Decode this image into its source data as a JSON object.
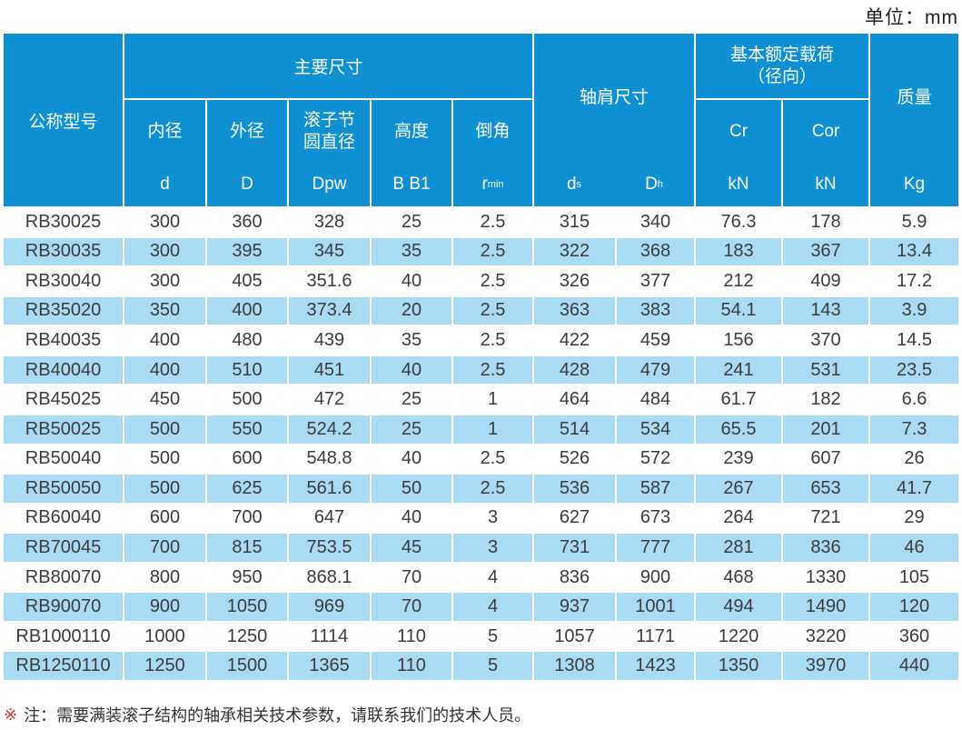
{
  "unit_label": "单位：mm",
  "colors": {
    "header_blue": "#0e90d2",
    "row_alt_blue": "#a9dbf4",
    "row_white": "#ffffff",
    "note_marker_red": "#d9342b",
    "header_text": "#ffffff",
    "body_text": "#3c3c3c"
  },
  "table": {
    "header": {
      "model": "公称型号",
      "main_dims": "主要尺寸",
      "inner_diameter": "内径",
      "outer_diameter": "外径",
      "roller_pitch_diameter": "滚子节\n圆直径",
      "height": "高度",
      "chamfer": "倒角",
      "shoulder_dims": "轴肩尺寸",
      "basic_load": "基本额定载荷\n（径向）",
      "mass": "质量",
      "sym_d": "d",
      "sym_D": "D",
      "sym_Dpw": "Dpw",
      "sym_B": "B B1",
      "sym_r_main": "r",
      "sym_r_sub": "min",
      "sym_ds_main": "d",
      "sym_ds_sub": "s",
      "sym_Dh_main": "D",
      "sym_Dh_sub": "h",
      "cr": "Cr",
      "cor": "Cor",
      "cr_unit": "kN",
      "cor_unit": "kN",
      "mass_unit": "Kg"
    },
    "columns": [
      "model",
      "d",
      "D",
      "Dpw",
      "B B1",
      "r min",
      "ds",
      "Dh",
      "Cr kN",
      "Cor kN",
      "mass Kg"
    ],
    "rows": [
      [
        "RB30025",
        "300",
        "360",
        "328",
        "25",
        "2.5",
        "315",
        "340",
        "76.3",
        "178",
        "5.9"
      ],
      [
        "RB30035",
        "300",
        "395",
        "345",
        "35",
        "2.5",
        "322",
        "368",
        "183",
        "367",
        "13.4"
      ],
      [
        "RB30040",
        "300",
        "405",
        "351.6",
        "40",
        "2.5",
        "326",
        "377",
        "212",
        "409",
        "17.2"
      ],
      [
        "RB35020",
        "350",
        "400",
        "373.4",
        "20",
        "2.5",
        "363",
        "383",
        "54.1",
        "143",
        "3.9"
      ],
      [
        "RB40035",
        "400",
        "480",
        "439",
        "35",
        "2.5",
        "422",
        "459",
        "156",
        "370",
        "14.5"
      ],
      [
        "RB40040",
        "400",
        "510",
        "451",
        "40",
        "2.5",
        "428",
        "479",
        "241",
        "531",
        "23.5"
      ],
      [
        "RB45025",
        "450",
        "500",
        "472",
        "25",
        "1",
        "464",
        "484",
        "61.7",
        "182",
        "6.6"
      ],
      [
        "RB50025",
        "500",
        "550",
        "524.2",
        "25",
        "1",
        "514",
        "534",
        "65.5",
        "201",
        "7.3"
      ],
      [
        "RB50040",
        "500",
        "600",
        "548.8",
        "40",
        "2.5",
        "526",
        "572",
        "239",
        "607",
        "26"
      ],
      [
        "RB50050",
        "500",
        "625",
        "561.6",
        "50",
        "2.5",
        "536",
        "587",
        "267",
        "653",
        "41.7"
      ],
      [
        "RB60040",
        "600",
        "700",
        "647",
        "40",
        "3",
        "627",
        "673",
        "264",
        "721",
        "29"
      ],
      [
        "RB70045",
        "700",
        "815",
        "753.5",
        "45",
        "3",
        "731",
        "777",
        "281",
        "836",
        "46"
      ],
      [
        "RB80070",
        "800",
        "950",
        "868.1",
        "70",
        "4",
        "836",
        "900",
        "468",
        "1330",
        "105"
      ],
      [
        "RB90070",
        "900",
        "1050",
        "969",
        "70",
        "4",
        "937",
        "1001",
        "494",
        "1490",
        "120"
      ],
      [
        "RB1000110",
        "1000",
        "1250",
        "1114",
        "110",
        "5",
        "1057",
        "1171",
        "1220",
        "3220",
        "360"
      ],
      [
        "RB1250110",
        "1250",
        "1500",
        "1365",
        "110",
        "5",
        "1308",
        "1423",
        "1350",
        "3970",
        "440"
      ]
    ]
  },
  "note": {
    "marker": "※",
    "text": "注：需要满装滚子结构的轴承相关技术参数，请联系我们的技术人员。"
  }
}
